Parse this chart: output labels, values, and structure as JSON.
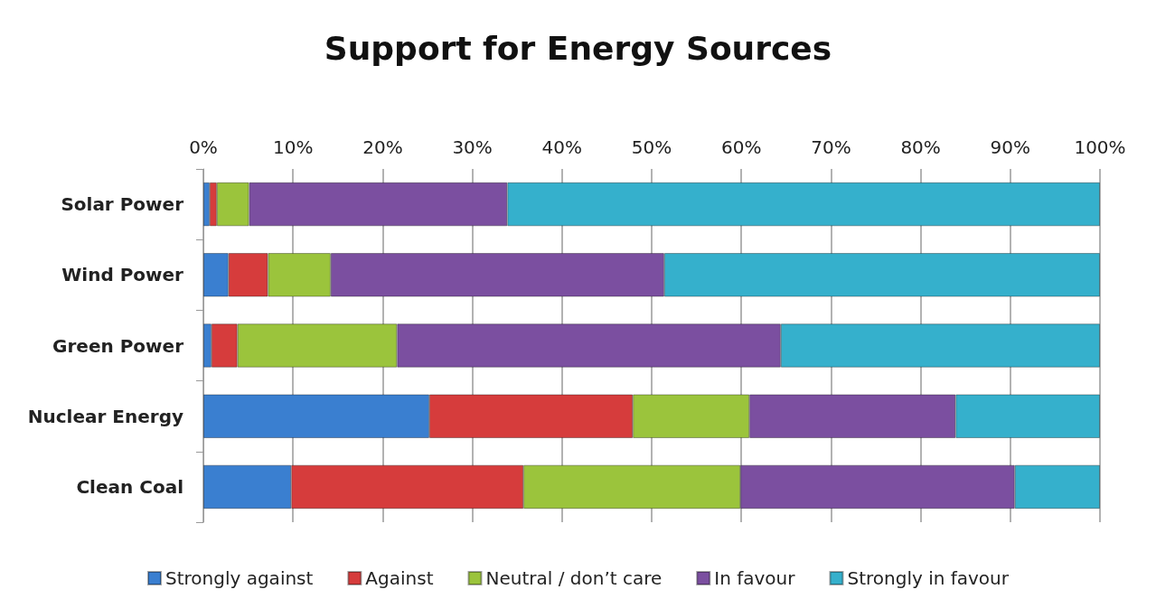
{
  "chart_data": {
    "type": "bar",
    "title": "Support for Energy Sources",
    "orientation": "horizontal",
    "stacked": true,
    "categories": [
      "Solar Power",
      "Wind Power",
      "Green Power",
      "Nuclear Energy",
      "Clean Coal"
    ],
    "series": [
      {
        "name": "Strongly against",
        "color": "#3a7fd0",
        "values": [
          0.7,
          2.8,
          0.9,
          25.2,
          9.8
        ]
      },
      {
        "name": "Against",
        "color": "#d63c3c",
        "values": [
          0.8,
          4.4,
          2.9,
          22.7,
          25.9
        ]
      },
      {
        "name": "Neutral / don’t care",
        "color": "#9bc43c",
        "values": [
          3.6,
          7.0,
          17.8,
          13.0,
          24.2
        ]
      },
      {
        "name": "In favour",
        "color": "#7b4fa0",
        "values": [
          28.8,
          37.2,
          42.8,
          23.0,
          30.6
        ]
      },
      {
        "name": "Strongly in favour",
        "color": "#35b0cc",
        "values": [
          66.1,
          48.6,
          35.6,
          16.1,
          9.5
        ]
      }
    ],
    "xlim": [
      0,
      100
    ],
    "xticks": [
      {
        "value": 0,
        "label": "0%"
      },
      {
        "value": 10,
        "label": "10%"
      },
      {
        "value": 20,
        "label": "20%"
      },
      {
        "value": 30,
        "label": "30%"
      },
      {
        "value": 40,
        "label": "40%"
      },
      {
        "value": 50,
        "label": "50%"
      },
      {
        "value": 60,
        "label": "60%"
      },
      {
        "value": 70,
        "label": "70%"
      },
      {
        "value": 80,
        "label": "80%"
      },
      {
        "value": 90,
        "label": "90%"
      },
      {
        "value": 100,
        "label": "100%"
      }
    ],
    "grid": "x",
    "legend": "bottom"
  }
}
